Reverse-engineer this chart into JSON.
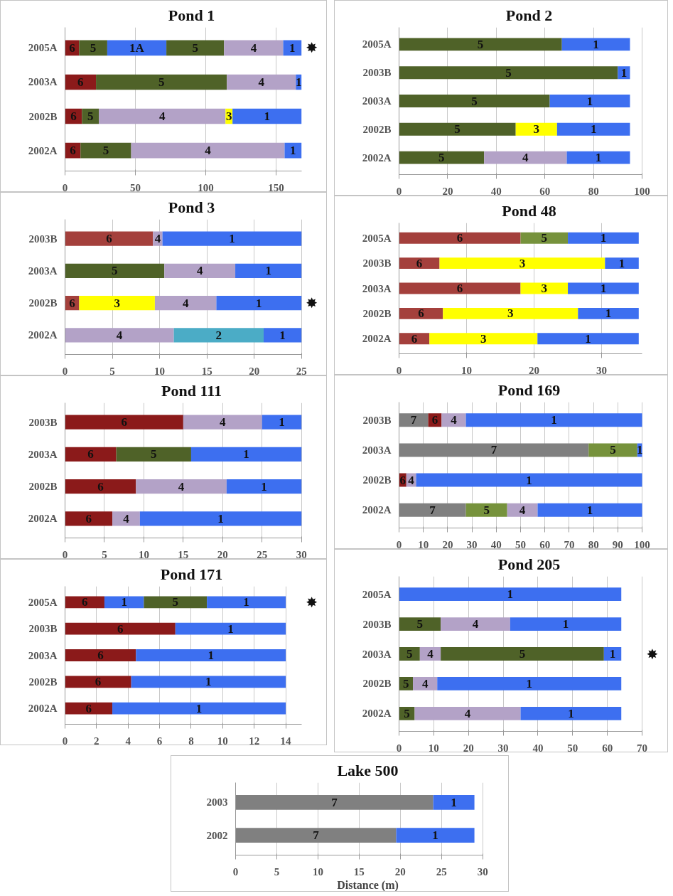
{
  "chart_data": [
    {
      "type": "bar",
      "orientation": "horizontal",
      "stacked": true,
      "title": "Pond 1",
      "categories": [
        "2005A",
        "2003A",
        "2002B",
        "2002A"
      ],
      "xlim": [
        0,
        168
      ],
      "xticks": [
        0,
        50,
        100,
        150
      ],
      "grid": "x",
      "annotations": [
        "✸"
      ],
      "series": [
        {
          "name": "6",
          "color": "#8b1a1a",
          "values": [
            10,
            22,
            12,
            11
          ]
        },
        {
          "name": "5",
          "color": "#4f6228",
          "values": [
            20,
            93,
            12,
            36
          ]
        },
        {
          "name": "1A",
          "color": "#3d6ff0",
          "values": [
            42,
            null,
            null,
            null
          ]
        },
        {
          "name": "5",
          "color": "#4f6228",
          "values": [
            41,
            null,
            null,
            null
          ]
        },
        {
          "name": "4",
          "color": "#b3a2c7",
          "values": [
            42,
            49,
            90,
            109
          ]
        },
        {
          "name": "3",
          "color": "#ffff00",
          "values": [
            null,
            null,
            5,
            null
          ]
        },
        {
          "name": "1",
          "color": "#3d6ff0",
          "values": [
            13,
            4,
            49,
            12
          ]
        }
      ]
    },
    {
      "type": "bar",
      "orientation": "horizontal",
      "stacked": true,
      "title": "Pond 2",
      "categories": [
        "2005A",
        "2003B",
        "2003A",
        "2002B",
        "2002A"
      ],
      "xlim": [
        0,
        100
      ],
      "xticks": [
        0,
        20,
        40,
        60,
        80,
        100
      ],
      "grid": "x",
      "series": [
        {
          "name": "5",
          "color": "#4f6228",
          "values": [
            67,
            90,
            62,
            48,
            35
          ]
        },
        {
          "name": "3",
          "color": "#ffff00",
          "values": [
            null,
            null,
            null,
            17,
            null
          ]
        },
        {
          "name": "4",
          "color": "#b3a2c7",
          "values": [
            null,
            null,
            null,
            null,
            34
          ]
        },
        {
          "name": "1",
          "color": "#3d6ff0",
          "values": [
            28,
            5,
            33,
            30,
            26
          ]
        }
      ]
    },
    {
      "type": "bar",
      "orientation": "horizontal",
      "stacked": true,
      "title": "Pond 3",
      "categories": [
        "2003B",
        "2003A",
        "2002B",
        "2002A"
      ],
      "xlim": [
        0,
        25
      ],
      "xticks": [
        0,
        5,
        10,
        15,
        20,
        25
      ],
      "grid": "x",
      "annotations": [
        "✸"
      ],
      "series": [
        {
          "name": "6",
          "color": "#a4403c",
          "values": [
            9.3,
            null,
            1.5,
            null
          ]
        },
        {
          "name": "5",
          "color": "#4f6228",
          "values": [
            null,
            10.5,
            null,
            null
          ]
        },
        {
          "name": "3",
          "color": "#ffff00",
          "values": [
            null,
            null,
            8,
            null
          ]
        },
        {
          "name": "4",
          "color": "#b3a2c7",
          "values": [
            1,
            7.5,
            6.5,
            11.5
          ]
        },
        {
          "name": "2",
          "color": "#4bacc6",
          "values": [
            null,
            null,
            null,
            9.5
          ]
        },
        {
          "name": "1",
          "color": "#3d6ff0",
          "values": [
            14.7,
            7,
            9,
            4
          ]
        }
      ]
    },
    {
      "type": "bar",
      "orientation": "horizontal",
      "stacked": true,
      "title": "Pond 48",
      "categories": [
        "2005A",
        "2003B",
        "2003A",
        "2002B",
        "2002A"
      ],
      "xlim": [
        0,
        36
      ],
      "xticks": [
        0,
        10,
        20,
        30
      ],
      "grid": "x",
      "series": [
        {
          "name": "6",
          "color": "#a4403c",
          "values": [
            18,
            6,
            18,
            6.5,
            4.5
          ]
        },
        {
          "name": "5",
          "color": "#76923c",
          "values": [
            7,
            null,
            null,
            null,
            null
          ]
        },
        {
          "name": "3",
          "color": "#ffff00",
          "values": [
            null,
            24.5,
            7,
            20,
            16
          ]
        },
        {
          "name": "1",
          "color": "#3d6ff0",
          "values": [
            10.5,
            5,
            10.5,
            9,
            15
          ]
        }
      ]
    },
    {
      "type": "bar",
      "orientation": "horizontal",
      "stacked": true,
      "title": "Pond 111",
      "categories": [
        "2003B",
        "2003A",
        "2002B",
        "2002A"
      ],
      "xlim": [
        0,
        30
      ],
      "xticks": [
        0,
        5,
        10,
        15,
        20,
        25,
        30
      ],
      "grid": "x",
      "series": [
        {
          "name": "6",
          "color": "#8b1a1a",
          "values": [
            15,
            6.5,
            9,
            6
          ]
        },
        {
          "name": "5",
          "color": "#4f6228",
          "values": [
            null,
            9.5,
            null,
            null
          ]
        },
        {
          "name": "4",
          "color": "#b3a2c7",
          "values": [
            10,
            null,
            11.5,
            3.5
          ]
        },
        {
          "name": "1",
          "color": "#3d6ff0",
          "values": [
            5,
            14,
            9.5,
            20.5
          ]
        }
      ]
    },
    {
      "type": "bar",
      "orientation": "horizontal",
      "stacked": true,
      "title": "Pond 169",
      "categories": [
        "2003B",
        "2003A",
        "2002B",
        "2002A"
      ],
      "xlim": [
        0,
        100
      ],
      "xticks": [
        0,
        10,
        20,
        30,
        40,
        50,
        60,
        70,
        80,
        90,
        100
      ],
      "grid": "x",
      "series": [
        {
          "name": "7",
          "color": "#808080",
          "values": [
            12,
            78,
            null,
            27.5
          ]
        },
        {
          "name": "6",
          "color": "#8b1a1a",
          "values": [
            5.5,
            null,
            3,
            null
          ]
        },
        {
          "name": "5",
          "color": "#76923c",
          "values": [
            null,
            20,
            null,
            17
          ]
        },
        {
          "name": "4",
          "color": "#b3a2c7",
          "values": [
            10,
            null,
            4,
            12.5
          ]
        },
        {
          "name": "1",
          "color": "#3d6ff0",
          "values": [
            72.5,
            2,
            93,
            43
          ]
        }
      ]
    },
    {
      "type": "bar",
      "orientation": "horizontal",
      "stacked": true,
      "title": "Pond 171",
      "categories": [
        "2005A",
        "2003B",
        "2003A",
        "2002B",
        "2002A"
      ],
      "xlim": [
        0,
        15
      ],
      "xticks": [
        0,
        2,
        4,
        6,
        8,
        10,
        12,
        14
      ],
      "grid": "x",
      "annotations": [
        "✸"
      ],
      "series": [
        {
          "name": "6",
          "color": "#8b1a1a",
          "values": [
            2.5,
            7,
            4.5,
            4.2,
            3
          ]
        },
        {
          "name": "1",
          "color": "#3d6ff0",
          "values": [
            2.5,
            7,
            9.5,
            9.8,
            11
          ]
        },
        {
          "name": "5",
          "color": "#4f6228",
          "values": [
            4,
            null,
            null,
            null,
            null
          ]
        },
        {
          "name": "1",
          "color": "#3d6ff0",
          "values": [
            5,
            null,
            null,
            null,
            null
          ]
        }
      ]
    },
    {
      "type": "bar",
      "orientation": "horizontal",
      "stacked": true,
      "title": "Pond 205",
      "categories": [
        "2005A",
        "2003B",
        "2003A",
        "2002B",
        "2002A"
      ],
      "xlim": [
        0,
        70
      ],
      "xticks": [
        0,
        10,
        20,
        30,
        40,
        50,
        60,
        70
      ],
      "grid": "x",
      "annotations": [
        "✸"
      ],
      "series": [
        {
          "name": "5",
          "color": "#4f6228",
          "values": [
            null,
            12,
            6,
            4,
            4.5
          ]
        },
        {
          "name": "4",
          "color": "#b3a2c7",
          "values": [
            null,
            20,
            6,
            7,
            30.5
          ]
        },
        {
          "name": "5",
          "color": "#4f6228",
          "values": [
            null,
            null,
            47,
            null,
            null
          ]
        },
        {
          "name": "1",
          "color": "#3d6ff0",
          "values": [
            64,
            32,
            5,
            53,
            29
          ]
        }
      ]
    },
    {
      "type": "bar",
      "orientation": "horizontal",
      "stacked": true,
      "title": "Lake 500",
      "xlabel": "Distance (m)",
      "categories": [
        "2003",
        "2002"
      ],
      "xlim": [
        0,
        30
      ],
      "xticks": [
        0,
        5,
        10,
        15,
        20,
        25,
        30
      ],
      "grid": "x",
      "series": [
        {
          "name": "7",
          "color": "#808080",
          "values": [
            24,
            19.5
          ]
        },
        {
          "name": "1",
          "color": "#3d6ff0",
          "values": [
            5,
            9.5
          ]
        }
      ]
    }
  ]
}
